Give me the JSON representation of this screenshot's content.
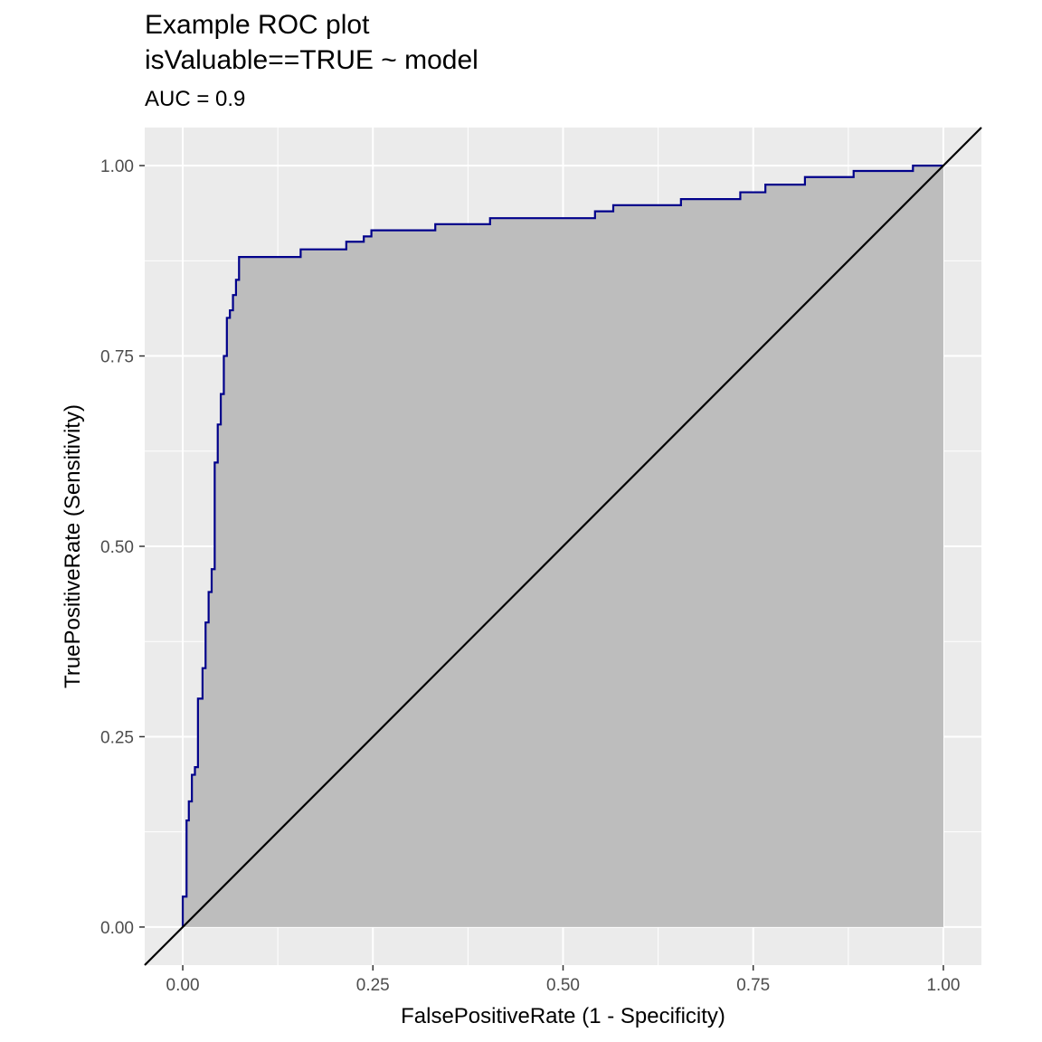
{
  "chart_data": {
    "type": "line",
    "title": "Example ROC plot",
    "title_line2": "isValuable==TRUE ~ model",
    "subtitle": "AUC = 0.9",
    "xlabel": "FalsePositiveRate (1 - Specificity)",
    "ylabel": "TruePositiveRate (Sensitivity)",
    "xlim": [
      -0.05,
      1.05
    ],
    "ylim": [
      -0.05,
      1.05
    ],
    "x_ticks": [
      0,
      0.25,
      0.5,
      0.75,
      1
    ],
    "x_tick_labels": [
      "0.00",
      "0.25",
      "0.50",
      "0.75",
      "1.00"
    ],
    "y_ticks": [
      0,
      0.25,
      0.5,
      0.75,
      1
    ],
    "y_tick_labels": [
      "0.00",
      "0.25",
      "0.50",
      "0.75",
      "1.00"
    ],
    "grid": true,
    "colors": {
      "panel_bg": "#ebebeb",
      "grid": "#ffffff",
      "roc_line": "#00008b",
      "area_fill": "#bdbdbd",
      "diagonal": "#000000"
    },
    "series": [
      {
        "kind": "roc-curve",
        "x": [
          0,
          0,
          0.005,
          0.005,
          0.008,
          0.008,
          0.012,
          0.012,
          0.016,
          0.016,
          0.02,
          0.02,
          0.026,
          0.026,
          0.03,
          0.03,
          0.034,
          0.034,
          0.038,
          0.038,
          0.042,
          0.042,
          0.046,
          0.046,
          0.05,
          0.05,
          0.054,
          0.054,
          0.058,
          0.058,
          0.062,
          0.062,
          0.066,
          0.066,
          0.07,
          0.07,
          0.074,
          0.074,
          0.078,
          0.078,
          0.082,
          0.082,
          0.155,
          0.155,
          0.215,
          0.215,
          0.238,
          0.238,
          0.248,
          0.248,
          0.332,
          0.332,
          0.404,
          0.404,
          0.542,
          0.542,
          0.566,
          0.566,
          0.655,
          0.655,
          0.733,
          0.733,
          0.766,
          0.766,
          0.818,
          0.818,
          0.882,
          0.882,
          0.96,
          0.96,
          1
        ],
        "y": [
          0,
          0.04,
          0.04,
          0.14,
          0.14,
          0.165,
          0.165,
          0.2,
          0.2,
          0.21,
          0.21,
          0.3,
          0.3,
          0.34,
          0.34,
          0.4,
          0.4,
          0.44,
          0.44,
          0.47,
          0.47,
          0.61,
          0.61,
          0.66,
          0.66,
          0.7,
          0.7,
          0.75,
          0.75,
          0.8,
          0.8,
          0.81,
          0.81,
          0.83,
          0.83,
          0.85,
          0.85,
          0.88,
          0.88,
          0.88,
          0.88,
          0.88,
          0.88,
          0.89,
          0.89,
          0.9,
          0.9,
          0.907,
          0.907,
          0.915,
          0.915,
          0.923,
          0.923,
          0.931,
          0.931,
          0.94,
          0.94,
          0.948,
          0.948,
          0.956,
          0.956,
          0.965,
          0.965,
          0.975,
          0.975,
          0.985,
          0.985,
          0.993,
          0.993,
          1,
          1
        ]
      },
      {
        "kind": "reference-diagonal",
        "x": [
          -0.05,
          1.05
        ],
        "y": [
          -0.05,
          1.05
        ]
      }
    ]
  }
}
